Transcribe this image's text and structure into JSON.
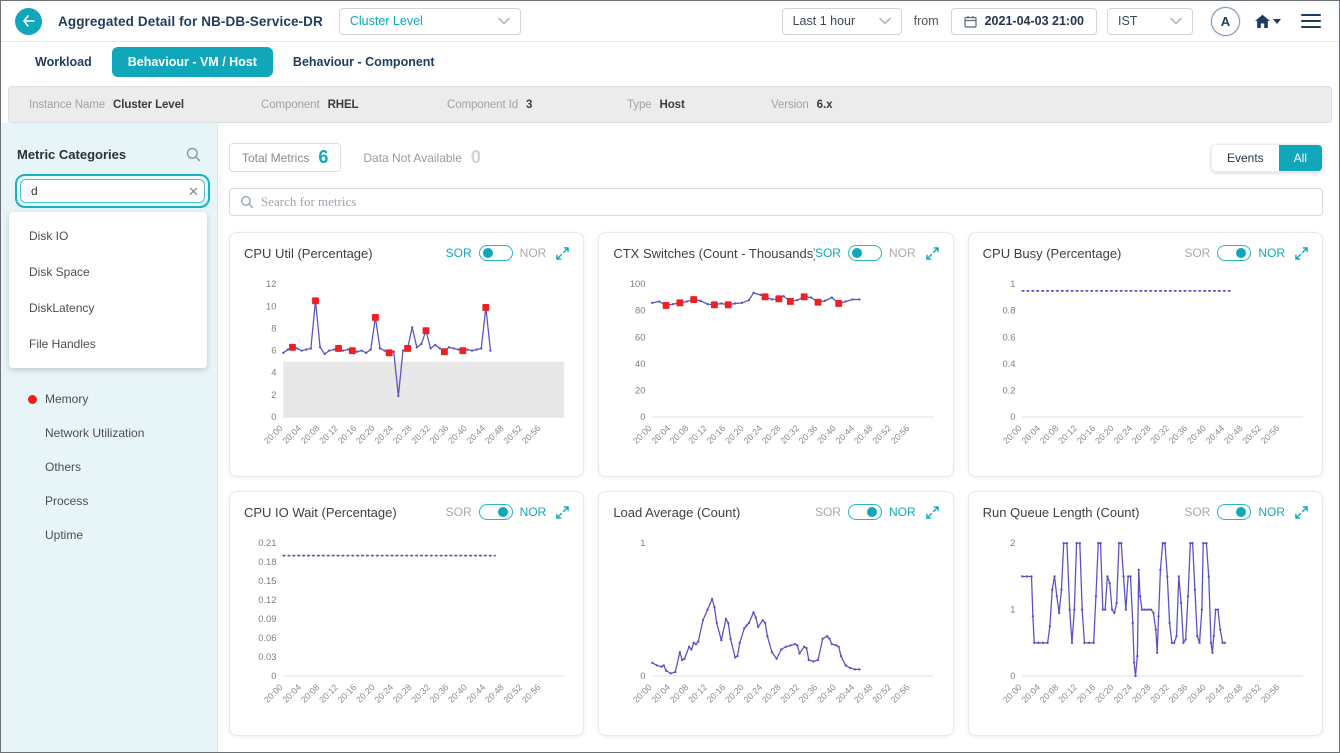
{
  "header": {
    "title": "Aggregated Detail for NB-DB-Service-DR",
    "scope_dropdown": "Cluster Level",
    "time_range_dropdown": "Last 1 hour",
    "from_label": "from",
    "datetime": "2021-04-03 21:00",
    "timezone_dropdown": "IST",
    "avatar_initial": "A"
  },
  "tabs": [
    {
      "label": "Workload",
      "active": false
    },
    {
      "label": "Behaviour - VM / Host",
      "active": true
    },
    {
      "label": "Behaviour - Component",
      "active": false
    }
  ],
  "info_bar": [
    {
      "label": "Instance Name",
      "value": "Cluster Level"
    },
    {
      "label": "Component",
      "value": "RHEL"
    },
    {
      "label": "Component Id",
      "value": "3"
    },
    {
      "label": "Type",
      "value": "Host"
    },
    {
      "label": "Version",
      "value": "6.x"
    }
  ],
  "sidebar": {
    "title": "Metric Categories",
    "search_value": "d",
    "clear_glyph": "✕",
    "suggestions": [
      "Disk IO",
      "Disk Space",
      "DiskLatency",
      "File Handles"
    ],
    "categories": [
      {
        "label": "Memory",
        "alert": true
      },
      {
        "label": "Network Utilization",
        "alert": false
      },
      {
        "label": "Others",
        "alert": false
      },
      {
        "label": "Process",
        "alert": false
      },
      {
        "label": "Uptime",
        "alert": false
      }
    ]
  },
  "metrics_bar": {
    "total_metrics_label": "Total Metrics",
    "total_metrics_count": "6",
    "dna_label": "Data Not Available",
    "dna_count": "0",
    "events_button": "Events",
    "all_button": "All",
    "active_filter": "All"
  },
  "metric_search": {
    "placeholder": "Search for metrics"
  },
  "colors": {
    "accent_teal": "#0fa7b9",
    "navy": "#1d3d5f",
    "line_purple": "#5a52c4",
    "marker_red": "#f31f1f",
    "band_gray": "#e8e8e8",
    "alert_red": "#f21d1d"
  },
  "chart_data": [
    {
      "type": "line",
      "title": "CPU Util (Percentage)",
      "toggle": "SOR",
      "ylim": [
        0,
        12.6
      ],
      "yticks": [
        "0",
        "2",
        "4",
        "6",
        "8",
        "10",
        "12"
      ],
      "x_ticks": [
        "20:00",
        "20:04",
        "20:08",
        "20:12",
        "20:16",
        "20:20",
        "20:24",
        "20:28",
        "20:32",
        "20:36",
        "20:40",
        "20:44",
        "20:48",
        "20:52",
        "20:56"
      ],
      "x_domain": 61,
      "band": {
        "y0": 0,
        "y1": 5
      },
      "dotted": false,
      "series": [
        [
          0,
          5.8
        ],
        [
          1,
          6.1
        ],
        [
          2,
          6.3
        ],
        [
          3,
          6.2
        ],
        [
          4,
          6.0
        ],
        [
          5,
          6.1
        ],
        [
          6,
          6.2
        ],
        [
          7,
          10.5
        ],
        [
          8,
          6.3
        ],
        [
          9,
          5.7
        ],
        [
          10,
          6.0
        ],
        [
          11,
          6.1
        ],
        [
          12,
          6.2
        ],
        [
          13,
          6.0
        ],
        [
          14,
          6.1
        ],
        [
          15,
          6.0
        ],
        [
          16,
          5.9
        ],
        [
          17,
          6.0
        ],
        [
          18,
          5.8
        ],
        [
          19,
          6.1
        ],
        [
          20,
          9.0
        ],
        [
          21,
          6.2
        ],
        [
          22,
          6.0
        ],
        [
          23,
          5.8
        ],
        [
          24,
          5.9
        ],
        [
          25,
          1.9
        ],
        [
          26,
          6.0
        ],
        [
          27,
          6.2
        ],
        [
          28,
          8.1
        ],
        [
          29,
          6.3
        ],
        [
          30,
          6.6
        ],
        [
          31,
          7.8
        ],
        [
          32,
          6.2
        ],
        [
          33,
          6.5
        ],
        [
          34,
          6.2
        ],
        [
          35,
          5.9
        ],
        [
          36,
          6.3
        ],
        [
          37,
          6.2
        ],
        [
          38,
          6.1
        ],
        [
          39,
          6.0
        ],
        [
          40,
          6.1
        ],
        [
          41,
          6.0
        ],
        [
          42,
          6.1
        ],
        [
          43,
          6.2
        ],
        [
          44,
          9.9
        ],
        [
          45,
          6.0
        ]
      ],
      "markers": [
        [
          2,
          6.3
        ],
        [
          7,
          10.5
        ],
        [
          12,
          6.2
        ],
        [
          15,
          6.0
        ],
        [
          20,
          9.0
        ],
        [
          23,
          5.8
        ],
        [
          27,
          6.2
        ],
        [
          31,
          7.8
        ],
        [
          35,
          5.9
        ],
        [
          39,
          6.0
        ],
        [
          44,
          9.9
        ]
      ]
    },
    {
      "type": "line",
      "title": "CTX Switches (Count - Thousands)",
      "toggle": "SOR",
      "ylim": [
        0,
        105
      ],
      "yticks": [
        "0",
        "20",
        "40",
        "60",
        "80",
        "100"
      ],
      "x_ticks": [
        "20:00",
        "20:04",
        "20:08",
        "20:12",
        "20:16",
        "20:20",
        "20:24",
        "20:28",
        "20:32",
        "20:36",
        "20:40",
        "20:44",
        "20:48",
        "20:52",
        "20:56"
      ],
      "x_domain": 61,
      "dotted": false,
      "series": [
        [
          0,
          86
        ],
        [
          1.5,
          87
        ],
        [
          3,
          84
        ],
        [
          4.5,
          85
        ],
        [
          6,
          86
        ],
        [
          7.5,
          87
        ],
        [
          9,
          88.5
        ],
        [
          10.5,
          87.5
        ],
        [
          12,
          85
        ],
        [
          13.5,
          84.5
        ],
        [
          15,
          85.5
        ],
        [
          16.5,
          84.5
        ],
        [
          18,
          85.5
        ],
        [
          19.5,
          86
        ],
        [
          21,
          88
        ],
        [
          22,
          93.5
        ],
        [
          23.5,
          92
        ],
        [
          24.5,
          90.5
        ],
        [
          26,
          88.5
        ],
        [
          27.5,
          89
        ],
        [
          28.5,
          91
        ],
        [
          30,
          87
        ],
        [
          31.5,
          88
        ],
        [
          33,
          90.5
        ],
        [
          34.5,
          90
        ],
        [
          36,
          86.5
        ],
        [
          37.5,
          87.5
        ],
        [
          39,
          90
        ],
        [
          40.5,
          85.5
        ],
        [
          42,
          87
        ],
        [
          43.5,
          88.5
        ],
        [
          45,
          88.5
        ]
      ],
      "markers": [
        [
          3,
          84
        ],
        [
          6,
          86
        ],
        [
          9,
          88.5
        ],
        [
          13.5,
          84.5
        ],
        [
          16.5,
          84.5
        ],
        [
          24.5,
          90.5
        ],
        [
          27.5,
          89
        ],
        [
          30,
          87
        ],
        [
          33,
          90.5
        ],
        [
          36,
          86.5
        ],
        [
          40.5,
          85.5
        ]
      ]
    },
    {
      "type": "line",
      "title": "CPU Busy (Percentage)",
      "toggle": "NOR",
      "ylim": [
        0,
        1.05
      ],
      "yticks": [
        "0",
        "0.2",
        "0.4",
        "0.6",
        "0.8",
        "1"
      ],
      "x_ticks": [
        "20:00",
        "20:04",
        "20:08",
        "20:12",
        "20:16",
        "20:20",
        "20:24",
        "20:28",
        "20:32",
        "20:36",
        "20:40",
        "20:44",
        "20:48",
        "20:52",
        "20:56"
      ],
      "x_domain": 61,
      "dotted": true,
      "series": [
        [
          0,
          0.95
        ],
        [
          45.5,
          0.95
        ]
      ],
      "markers": []
    },
    {
      "type": "line",
      "title": "CPU IO Wait (Percentage)",
      "toggle": "NOR",
      "ylim": [
        0,
        0.22
      ],
      "yticks": [
        "0",
        "0.03",
        "0.06",
        "0.09",
        "0.12",
        "0.15",
        "0.18",
        "0.21"
      ],
      "x_ticks": [
        "20:00",
        "20:04",
        "20:08",
        "20:12",
        "20:16",
        "20:20",
        "20:24",
        "20:28",
        "20:32",
        "20:36",
        "20:40",
        "20:44",
        "20:48",
        "20:52",
        "20:56"
      ],
      "x_domain": 61,
      "dotted": true,
      "series": [
        [
          0,
          0.19
        ],
        [
          46,
          0.19
        ]
      ],
      "markers": []
    },
    {
      "type": "line",
      "title": "Load Average (Count)",
      "toggle": "NOR",
      "ylim": [
        0,
        1.05
      ],
      "yticks": [
        "0",
        "1"
      ],
      "x_ticks": [
        "20:00",
        "20:04",
        "20:08",
        "20:12",
        "20:16",
        "20:20",
        "20:24",
        "20:28",
        "20:32",
        "20:36",
        "20:40",
        "20:44",
        "20:48",
        "20:52",
        "20:56"
      ],
      "x_domain": 61,
      "dotted": false,
      "series": [
        [
          0,
          0.1
        ],
        [
          1,
          0.08
        ],
        [
          2,
          0.07
        ],
        [
          2.5,
          0.08
        ],
        [
          3,
          0.04
        ],
        [
          4,
          0.02
        ],
        [
          5,
          0.03
        ],
        [
          6,
          0.18
        ],
        [
          6.5,
          0.12
        ],
        [
          7,
          0.13
        ],
        [
          8,
          0.22
        ],
        [
          8.5,
          0.2
        ],
        [
          9,
          0.25
        ],
        [
          9.5,
          0.24
        ],
        [
          10,
          0.26
        ],
        [
          11,
          0.42
        ],
        [
          12,
          0.5
        ],
        [
          13,
          0.58
        ],
        [
          13.5,
          0.52
        ],
        [
          14,
          0.4
        ],
        [
          15,
          0.27
        ],
        [
          16,
          0.43
        ],
        [
          16.5,
          0.4
        ],
        [
          17,
          0.28
        ],
        [
          18,
          0.14
        ],
        [
          18.5,
          0.15
        ],
        [
          19,
          0.25
        ],
        [
          20,
          0.36
        ],
        [
          20.5,
          0.38
        ],
        [
          21,
          0.4
        ],
        [
          22,
          0.48
        ],
        [
          22.5,
          0.44
        ],
        [
          23,
          0.37
        ],
        [
          24,
          0.42
        ],
        [
          24.5,
          0.4
        ],
        [
          25,
          0.3
        ],
        [
          26,
          0.18
        ],
        [
          27,
          0.13
        ],
        [
          28,
          0.2
        ],
        [
          29,
          0.22
        ],
        [
          30,
          0.23
        ],
        [
          31,
          0.24
        ],
        [
          31.5,
          0.23
        ],
        [
          32,
          0.17
        ],
        [
          33,
          0.22
        ],
        [
          33.5,
          0.21
        ],
        [
          34,
          0.12
        ],
        [
          35,
          0.11
        ],
        [
          36,
          0.12
        ],
        [
          37,
          0.28
        ],
        [
          38,
          0.3
        ],
        [
          38.5,
          0.28
        ],
        [
          39,
          0.24
        ],
        [
          40,
          0.23
        ],
        [
          40.5,
          0.22
        ],
        [
          41,
          0.15
        ],
        [
          42,
          0.08
        ],
        [
          43,
          0.06
        ],
        [
          44,
          0.05
        ],
        [
          45,
          0.05
        ]
      ],
      "markers": []
    },
    {
      "type": "line",
      "title": "Run Queue Length (Count)",
      "toggle": "NOR",
      "ylim": [
        0,
        2.1
      ],
      "yticks": [
        "0",
        "1",
        "2"
      ],
      "x_ticks": [
        "20:00",
        "20:04",
        "20:08",
        "20:12",
        "20:16",
        "20:20",
        "20:24",
        "20:28",
        "20:32",
        "20:36",
        "20:40",
        "20:44",
        "20:48",
        "20:52",
        "20:56"
      ],
      "x_domain": 61,
      "dotted": false,
      "series": [
        [
          0,
          1.5
        ],
        [
          1,
          1.5
        ],
        [
          2,
          1.5
        ],
        [
          2.3,
          0.9
        ],
        [
          2.6,
          0.5
        ],
        [
          3.5,
          0.5
        ],
        [
          4.5,
          0.5
        ],
        [
          5.5,
          0.5
        ],
        [
          6,
          0.75
        ],
        [
          6.5,
          1.3
        ],
        [
          7,
          1.5
        ],
        [
          7.5,
          1.2
        ],
        [
          8,
          0.95
        ],
        [
          8.5,
          1.3
        ],
        [
          9,
          2
        ],
        [
          9.7,
          2
        ],
        [
          10.3,
          1
        ],
        [
          10.8,
          0.5
        ],
        [
          11.3,
          1
        ],
        [
          11.8,
          2
        ],
        [
          12.5,
          2
        ],
        [
          13,
          1
        ],
        [
          13.5,
          0.5
        ],
        [
          14.5,
          0.5
        ],
        [
          15.5,
          0.5
        ],
        [
          16,
          1.2
        ],
        [
          16.5,
          2
        ],
        [
          17,
          2
        ],
        [
          17.5,
          1
        ],
        [
          18,
          1
        ],
        [
          18.5,
          1.5
        ],
        [
          19,
          1.4
        ],
        [
          19.5,
          1
        ],
        [
          20,
          0.95
        ],
        [
          20.5,
          1.1
        ],
        [
          21,
          2
        ],
        [
          21.5,
          2
        ],
        [
          22,
          1.5
        ],
        [
          22.5,
          1
        ],
        [
          23,
          1.5
        ],
        [
          23.5,
          1.5
        ],
        [
          24,
          0.8
        ],
        [
          24.3,
          0.2
        ],
        [
          24.6,
          0
        ],
        [
          25,
          0.3
        ],
        [
          25.3,
          1.6
        ],
        [
          25.6,
          1.2
        ],
        [
          26,
          1
        ],
        [
          26.5,
          1
        ],
        [
          27,
          1
        ],
        [
          27.5,
          1
        ],
        [
          28,
          1
        ],
        [
          28.5,
          0.95
        ],
        [
          29,
          0.7
        ],
        [
          29.3,
          0.35
        ],
        [
          29.6,
          0.9
        ],
        [
          30,
          1.6
        ],
        [
          30.5,
          2
        ],
        [
          31,
          2
        ],
        [
          31.5,
          1.5
        ],
        [
          32,
          0.8
        ],
        [
          32.5,
          0.5
        ],
        [
          33,
          0.5
        ],
        [
          33.5,
          0.6
        ],
        [
          34,
          1.5
        ],
        [
          34.5,
          1.1
        ],
        [
          35,
          0.5
        ],
        [
          35.5,
          0.55
        ],
        [
          36,
          1.2
        ],
        [
          36.5,
          2
        ],
        [
          37,
          2
        ],
        [
          37.5,
          1.3
        ],
        [
          38,
          0.6
        ],
        [
          38.5,
          0.5
        ],
        [
          39,
          1
        ],
        [
          39.3,
          2
        ],
        [
          40,
          2
        ],
        [
          40.5,
          1.5
        ],
        [
          41,
          0.5
        ],
        [
          41.3,
          0.35
        ],
        [
          41.6,
          0.6
        ],
        [
          42,
          1
        ],
        [
          42.5,
          1
        ],
        [
          43,
          0.7
        ],
        [
          43.5,
          0.5
        ],
        [
          44,
          0.5
        ]
      ],
      "markers": []
    }
  ],
  "toggle_labels": {
    "sor": "SOR",
    "nor": "NOR"
  }
}
